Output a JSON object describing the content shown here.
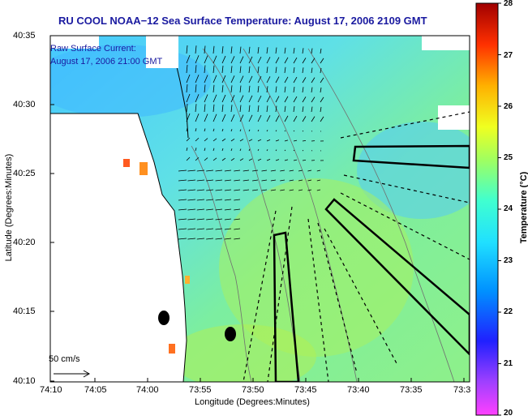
{
  "title": "RU COOL  NOAA−12  Sea Surface Temperature:  August 17, 2006 2109 GMT",
  "current_label": {
    "line1": "Raw Surface Current:",
    "line2": "August 17, 2006 21:00 GMT"
  },
  "scale_label": "50 cm/s",
  "axes": {
    "xlabel": "Longitude (Degrees:Minutes)",
    "ylabel": "Latitude (Degrees:Minutes)",
    "x_ticks": [
      "74:10",
      "74:05",
      "74:00",
      "73:55",
      "73:50",
      "73:45",
      "73:40",
      "73:35",
      "73:3"
    ],
    "y_ticks": [
      "40:35",
      "40:30",
      "40:25",
      "40:20",
      "40:15",
      "40:10"
    ]
  },
  "colorbar": {
    "label": "Temperature (°C)",
    "ticks": [
      "28",
      "27",
      "26",
      "25",
      "24",
      "23",
      "22",
      "21",
      "20"
    ],
    "range": [
      20,
      28
    ]
  },
  "colors": {
    "title_text": "#1a1aa0",
    "sst_mid": "#5fd2ff",
    "sst_warm": "#9aec72",
    "land": "#ffffff"
  }
}
